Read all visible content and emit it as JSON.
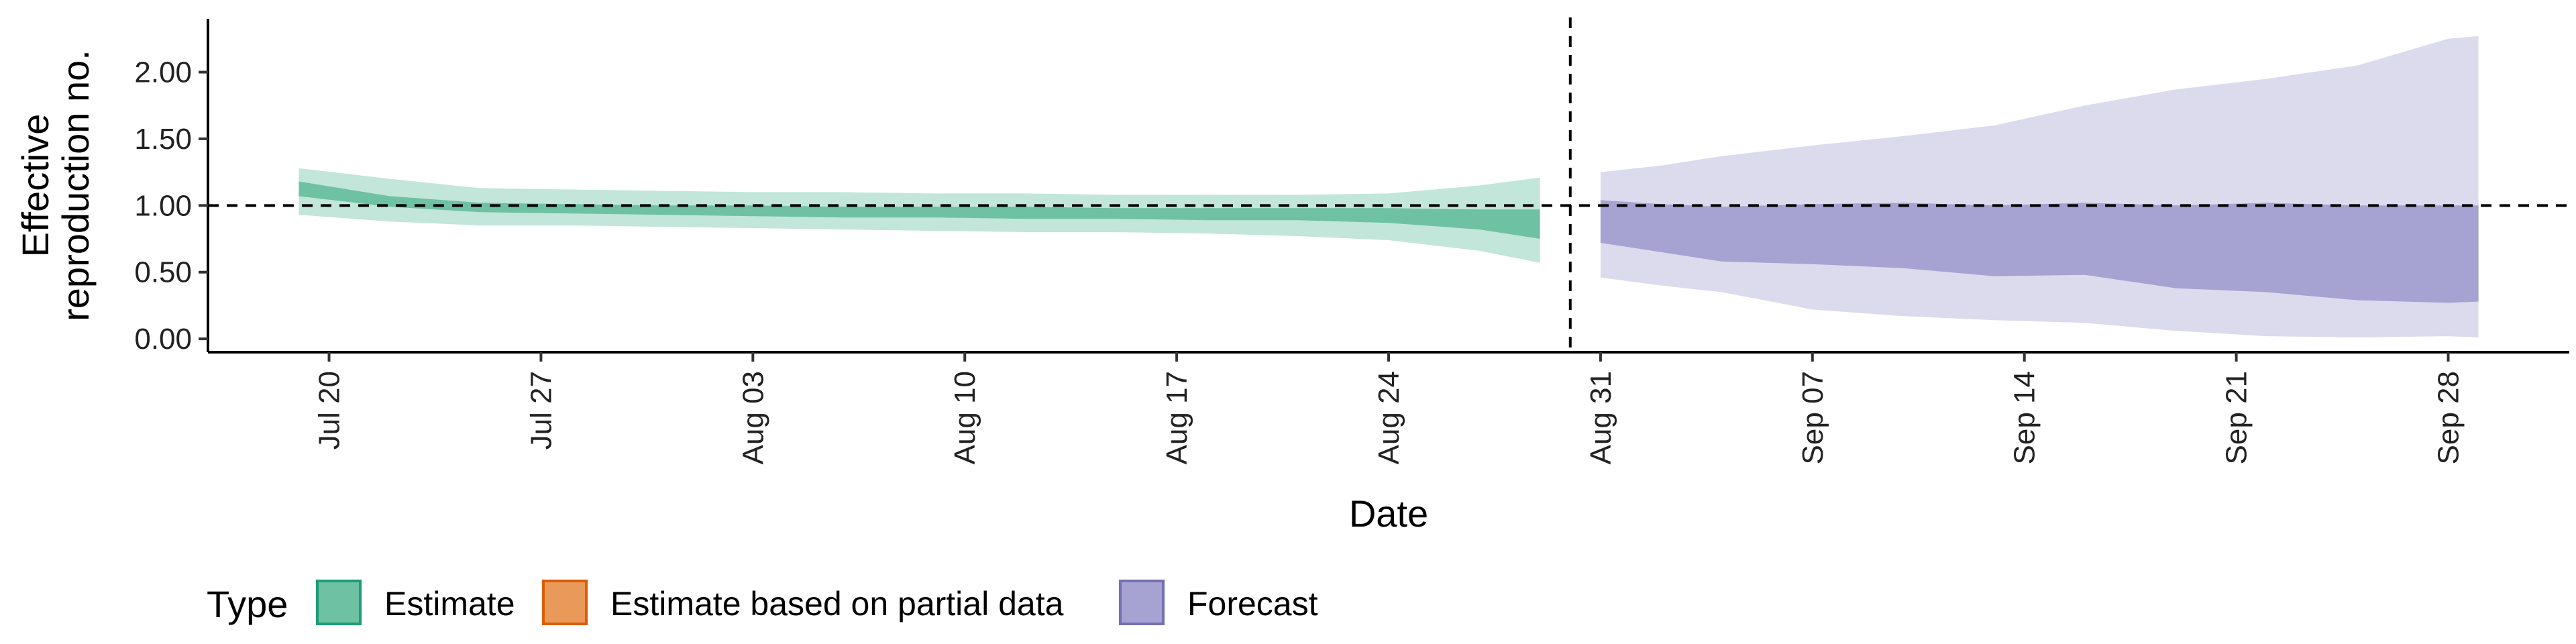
{
  "chart_data": {
    "type": "area",
    "xlabel": "Date",
    "ylabel_lines": [
      "Effective",
      "reproduction no."
    ],
    "x_domain": [
      "2020-07-16",
      "2020-10-02"
    ],
    "ylim": [
      -0.1,
      2.4
    ],
    "yticks": [
      0.0,
      0.5,
      1.0,
      1.5,
      2.0
    ],
    "ytick_labels": [
      "0.00",
      "0.50",
      "1.00",
      "1.50",
      "2.00"
    ],
    "xticks": [
      "2020-07-20",
      "2020-07-27",
      "2020-08-03",
      "2020-08-10",
      "2020-08-17",
      "2020-08-24",
      "2020-08-31",
      "2020-09-07",
      "2020-09-14",
      "2020-09-21",
      "2020-09-28"
    ],
    "xtick_labels": [
      "Jul 20",
      "Jul 27",
      "Aug 03",
      "Aug 10",
      "Aug 17",
      "Aug 24",
      "Aug 31",
      "Sep 07",
      "Sep 14",
      "Sep 21",
      "Sep 28"
    ],
    "hline": 1.0,
    "vline": "2020-08-30",
    "grid": false,
    "legend_position": "bottom",
    "legend": {
      "title": "Type",
      "items": [
        {
          "label": "Estimate",
          "fill": "#6fc1a4",
          "stroke": "#1b9e77"
        },
        {
          "label": "Estimate based on partial data",
          "fill": "#e9995a",
          "stroke": "#d95f02"
        },
        {
          "label": "Forecast",
          "fill": "#a6a2d1",
          "stroke": "#7570b3"
        }
      ]
    },
    "series": [
      {
        "type": "Estimate",
        "color_outer": "#c2e6d9",
        "color_inner": "#6fc1a4",
        "dates": [
          "2020-07-19",
          "2020-07-22",
          "2020-07-25",
          "2020-07-28",
          "2020-07-31",
          "2020-08-03",
          "2020-08-06",
          "2020-08-09",
          "2020-08-12",
          "2020-08-15",
          "2020-08-18",
          "2020-08-21",
          "2020-08-24",
          "2020-08-27",
          "2020-08-29"
        ],
        "lower90": [
          0.93,
          0.88,
          0.85,
          0.85,
          0.84,
          0.83,
          0.82,
          0.81,
          0.8,
          0.8,
          0.79,
          0.77,
          0.74,
          0.66,
          0.57
        ],
        "lower50": [
          1.07,
          0.99,
          0.95,
          0.94,
          0.93,
          0.92,
          0.91,
          0.91,
          0.9,
          0.9,
          0.89,
          0.89,
          0.87,
          0.82,
          0.75
        ],
        "upper50": [
          1.18,
          1.07,
          1.02,
          1.01,
          1.0,
          1.0,
          0.99,
          0.99,
          0.99,
          0.98,
          0.98,
          0.98,
          0.98,
          0.97,
          0.97
        ],
        "upper90": [
          1.28,
          1.2,
          1.13,
          1.12,
          1.11,
          1.1,
          1.1,
          1.09,
          1.09,
          1.08,
          1.08,
          1.08,
          1.09,
          1.15,
          1.21
        ]
      },
      {
        "type": "Forecast",
        "color_outer": "#dcdbed",
        "color_inner": "#a6a2d1",
        "dates": [
          "2020-08-31",
          "2020-09-02",
          "2020-09-04",
          "2020-09-07",
          "2020-09-10",
          "2020-09-13",
          "2020-09-16",
          "2020-09-19",
          "2020-09-22",
          "2020-09-25",
          "2020-09-28",
          "2020-09-29"
        ],
        "lower90": [
          0.46,
          0.4,
          0.35,
          0.22,
          0.17,
          0.14,
          0.12,
          0.06,
          0.02,
          0.01,
          0.02,
          0.01
        ],
        "lower50": [
          0.72,
          0.65,
          0.58,
          0.56,
          0.53,
          0.47,
          0.48,
          0.38,
          0.35,
          0.29,
          0.27,
          0.28
        ],
        "upper50": [
          1.04,
          1.01,
          0.99,
          1.01,
          1.02,
          1.0,
          1.02,
          1.0,
          1.02,
          1.0,
          1.0,
          1.0
        ],
        "upper90": [
          1.25,
          1.3,
          1.37,
          1.45,
          1.52,
          1.6,
          1.75,
          1.87,
          1.95,
          2.05,
          2.25,
          2.27
        ]
      }
    ]
  }
}
